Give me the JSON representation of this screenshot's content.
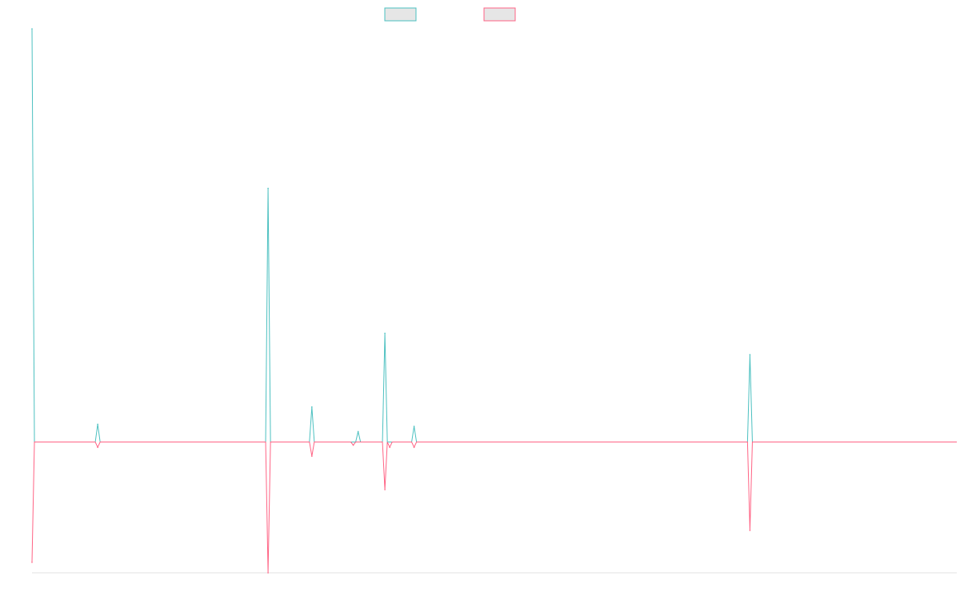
{
  "chart_data": {
    "type": "line",
    "title": "",
    "xlabel": "",
    "ylabel": "",
    "grid": false,
    "legend": "top-center",
    "x": [
      0,
      1,
      2,
      3,
      4,
      5,
      6,
      7,
      8,
      9,
      10,
      11,
      12,
      13,
      14,
      15,
      16,
      17,
      18,
      19,
      20,
      21,
      22,
      23,
      24,
      25,
      26,
      27,
      28,
      29,
      30,
      31,
      32,
      33,
      34,
      35,
      36,
      37,
      38,
      39,
      40,
      41,
      42,
      43,
      44,
      45,
      46,
      47,
      48,
      49,
      50,
      51,
      52,
      53,
      54,
      55,
      56,
      57,
      58,
      59,
      60,
      61,
      62,
      63,
      64,
      65,
      66,
      67,
      68,
      69,
      70,
      71,
      72,
      73,
      74,
      75,
      76,
      77,
      78,
      79,
      80,
      81,
      82,
      83,
      84,
      85,
      86,
      87,
      88,
      89,
      90,
      91,
      92,
      93,
      94,
      95,
      96,
      97,
      98,
      99,
      100,
      101,
      102,
      103,
      104,
      105,
      106,
      107,
      108,
      109,
      110,
      111,
      112,
      113,
      114,
      115,
      116,
      117,
      118,
      119,
      120,
      121,
      122,
      123,
      124,
      125,
      126,
      127,
      128,
      129,
      130,
      131,
      132,
      133,
      134,
      135,
      136,
      137,
      138,
      139,
      140,
      141,
      142,
      143,
      144,
      145,
      146,
      147,
      148,
      149,
      150,
      151,
      152,
      153,
      154,
      155,
      156,
      157,
      158,
      159,
      160,
      161,
      162,
      163,
      164,
      165,
      166,
      167,
      168,
      169,
      170,
      171,
      172,
      173,
      174,
      175,
      176,
      177,
      178,
      179,
      180,
      181,
      182,
      183,
      184,
      185,
      186,
      187,
      188,
      189,
      190,
      191,
      192,
      193,
      194,
      195,
      196,
      197,
      198,
      199,
      200,
      201,
      202,
      203,
      204,
      205,
      206,
      207,
      208,
      209,
      210,
      211,
      212,
      213,
      214,
      215,
      216,
      217,
      218,
      219,
      220,
      221,
      222,
      223,
      224,
      225,
      226,
      227,
      228,
      229,
      230,
      231,
      232,
      233,
      234,
      235,
      236,
      237,
      238,
      239,
      240,
      241,
      242,
      243,
      244,
      245,
      246,
      247,
      248,
      249,
      250,
      251,
      252,
      253,
      254,
      255,
      256,
      257,
      258,
      259,
      260,
      261,
      262,
      263,
      264,
      265,
      266,
      267,
      268,
      269,
      270,
      271,
      272,
      273,
      274,
      275,
      276,
      277,
      278,
      279,
      280,
      281,
      282,
      283,
      284,
      285,
      286,
      287,
      288,
      289,
      290,
      291,
      292,
      293,
      294,
      295,
      296,
      297,
      298,
      299,
      300,
      301,
      302,
      303,
      304,
      305,
      306,
      307,
      308,
      309,
      310,
      311,
      312,
      313,
      314,
      315,
      316,
      317,
      318,
      319,
      320,
      321,
      322,
      323,
      324,
      325,
      326,
      327,
      328,
      329,
      330,
      331,
      332,
      333,
      334,
      335,
      336,
      337,
      338,
      339,
      340,
      341,
      342,
      343,
      344,
      345,
      346,
      347,
      348,
      349,
      350,
      351,
      352,
      353,
      354,
      355,
      356,
      357,
      358,
      359,
      360,
      361,
      362,
      363,
      364,
      365,
      366,
      367,
      368,
      369,
      370,
      371,
      372,
      373,
      374,
      375,
      376,
      377,
      378,
      379,
      380
    ],
    "xlim": [
      0,
      380
    ],
    "ylim": [
      -25,
      79
    ],
    "baseline": 0,
    "series": [
      {
        "name": "",
        "color": "#4bc0c0",
        "spikes": [
          [
            0,
            79
          ],
          [
            27,
            3.4
          ],
          [
            97,
            48.5
          ],
          [
            115,
            6.7
          ],
          [
            134,
            2
          ],
          [
            145,
            20.8
          ],
          [
            157,
            3
          ],
          [
            295,
            16.7
          ]
        ]
      },
      {
        "name": "",
        "color": "#ff6384",
        "spikes": [
          [
            0,
            -23
          ],
          [
            27,
            -1
          ],
          [
            97,
            -25
          ],
          [
            115,
            -2.7
          ],
          [
            132,
            -0.6
          ],
          [
            145,
            -9.1
          ],
          [
            147,
            -1
          ],
          [
            157,
            -1
          ],
          [
            295,
            -16.9
          ]
        ]
      }
    ]
  }
}
